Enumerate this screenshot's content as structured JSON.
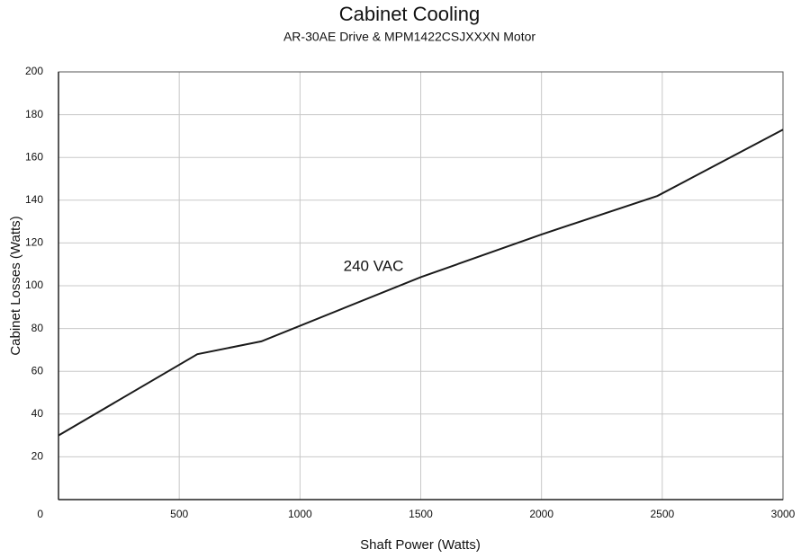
{
  "chart_data": {
    "type": "line",
    "title": "Cabinet Cooling",
    "subtitle": "AR-30AE Drive & MPM1422CSJXXXN Motor",
    "x_label": "Shaft Power (Watts)",
    "y_label": "Cabinet Losses (Watts)",
    "annotation": "240 VAC",
    "x": [
      0,
      575,
      840,
      1500,
      2000,
      2480,
      3000
    ],
    "series": [
      {
        "name": "240 VAC",
        "color": "#1a1a1a",
        "values": [
          30,
          68,
          74,
          104,
          124,
          142,
          173
        ]
      }
    ],
    "xlim": [
      0,
      3000
    ],
    "xticks": [
      500,
      1000,
      1500,
      2000,
      2500,
      3000
    ],
    "ylim": [
      0,
      200
    ],
    "yticks": [
      0,
      20,
      40,
      60,
      80,
      100,
      120,
      140,
      160,
      180,
      200
    ],
    "grid": true
  }
}
